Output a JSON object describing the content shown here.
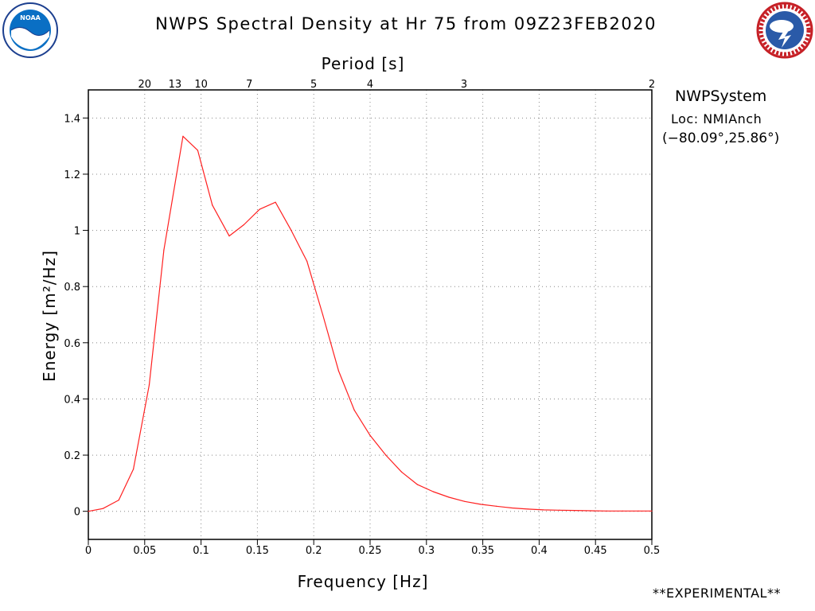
{
  "header": {
    "title": "NWPS Spectral Density at Hr 75 from 09Z23FEB2020",
    "left_logo": {
      "icon": "noaa-logo-icon",
      "text": "NOAA"
    },
    "right_logo": {
      "icon": "nws-logo-icon",
      "text": "NATIONAL WEATHER SERVICE"
    }
  },
  "info": {
    "system": "NWPSystem",
    "location": "Loc: NMIAnch",
    "coords": "(−80.09°,25.86°)"
  },
  "footer": {
    "note": "**EXPERIMENTAL**"
  },
  "colors": {
    "line": "#ff2020",
    "frame": "#000000",
    "grid": "#888888"
  },
  "chart_data": {
    "type": "line",
    "xlabel": "Frequency [Hz]",
    "ylabel": "Energy [m²/Hz]",
    "x2label": "Period [s]",
    "xlim": [
      0,
      0.5
    ],
    "ylim": [
      -0.1,
      1.5
    ],
    "grid": true,
    "xticks": [
      0,
      0.05,
      0.1,
      0.15,
      0.2,
      0.25,
      0.3,
      0.35,
      0.4,
      0.45,
      0.5
    ],
    "xtick_labels": [
      "0",
      "0.05",
      "0.1",
      "0.15",
      "0.2",
      "0.25",
      "0.3",
      "0.35",
      "0.4",
      "0.45",
      "0.5"
    ],
    "yticks": [
      0,
      0.2,
      0.4,
      0.6,
      0.8,
      1.0,
      1.2,
      1.4
    ],
    "ytick_labels": [
      "0",
      "0.2",
      "0.4",
      "0.6",
      "0.8",
      "1",
      "1.2",
      "1.4"
    ],
    "period_ticks": [
      {
        "period": 20,
        "label": "20"
      },
      {
        "period": 13,
        "label": "13"
      },
      {
        "period": 10,
        "label": "10"
      },
      {
        "period": 7,
        "label": "7"
      },
      {
        "period": 5,
        "label": "5"
      },
      {
        "period": 4,
        "label": "4"
      },
      {
        "period": 3,
        "label": "3"
      },
      {
        "period": 2,
        "label": "2"
      }
    ],
    "series": [
      {
        "x": [
          0,
          0.013,
          0.027,
          0.04,
          0.054,
          0.067,
          0.084,
          0.097,
          0.11,
          0.125,
          0.138,
          0.152,
          0.166,
          0.18,
          0.194,
          0.208,
          0.222,
          0.236,
          0.25,
          0.264,
          0.278,
          0.292,
          0.306,
          0.32,
          0.334,
          0.348,
          0.362,
          0.376,
          0.39,
          0.404,
          0.418,
          0.432,
          0.446,
          0.46,
          0.474,
          0.488,
          0.5
        ],
        "y": [
          0.0,
          0.01,
          0.04,
          0.15,
          0.45,
          0.93,
          1.335,
          1.285,
          1.09,
          0.98,
          1.02,
          1.075,
          1.1,
          1.0,
          0.89,
          0.7,
          0.5,
          0.36,
          0.27,
          0.2,
          0.14,
          0.095,
          0.07,
          0.05,
          0.035,
          0.025,
          0.018,
          0.012,
          0.008,
          0.005,
          0.004,
          0.003,
          0.002,
          0.001,
          0.001,
          0.001,
          0.001
        ]
      }
    ]
  }
}
